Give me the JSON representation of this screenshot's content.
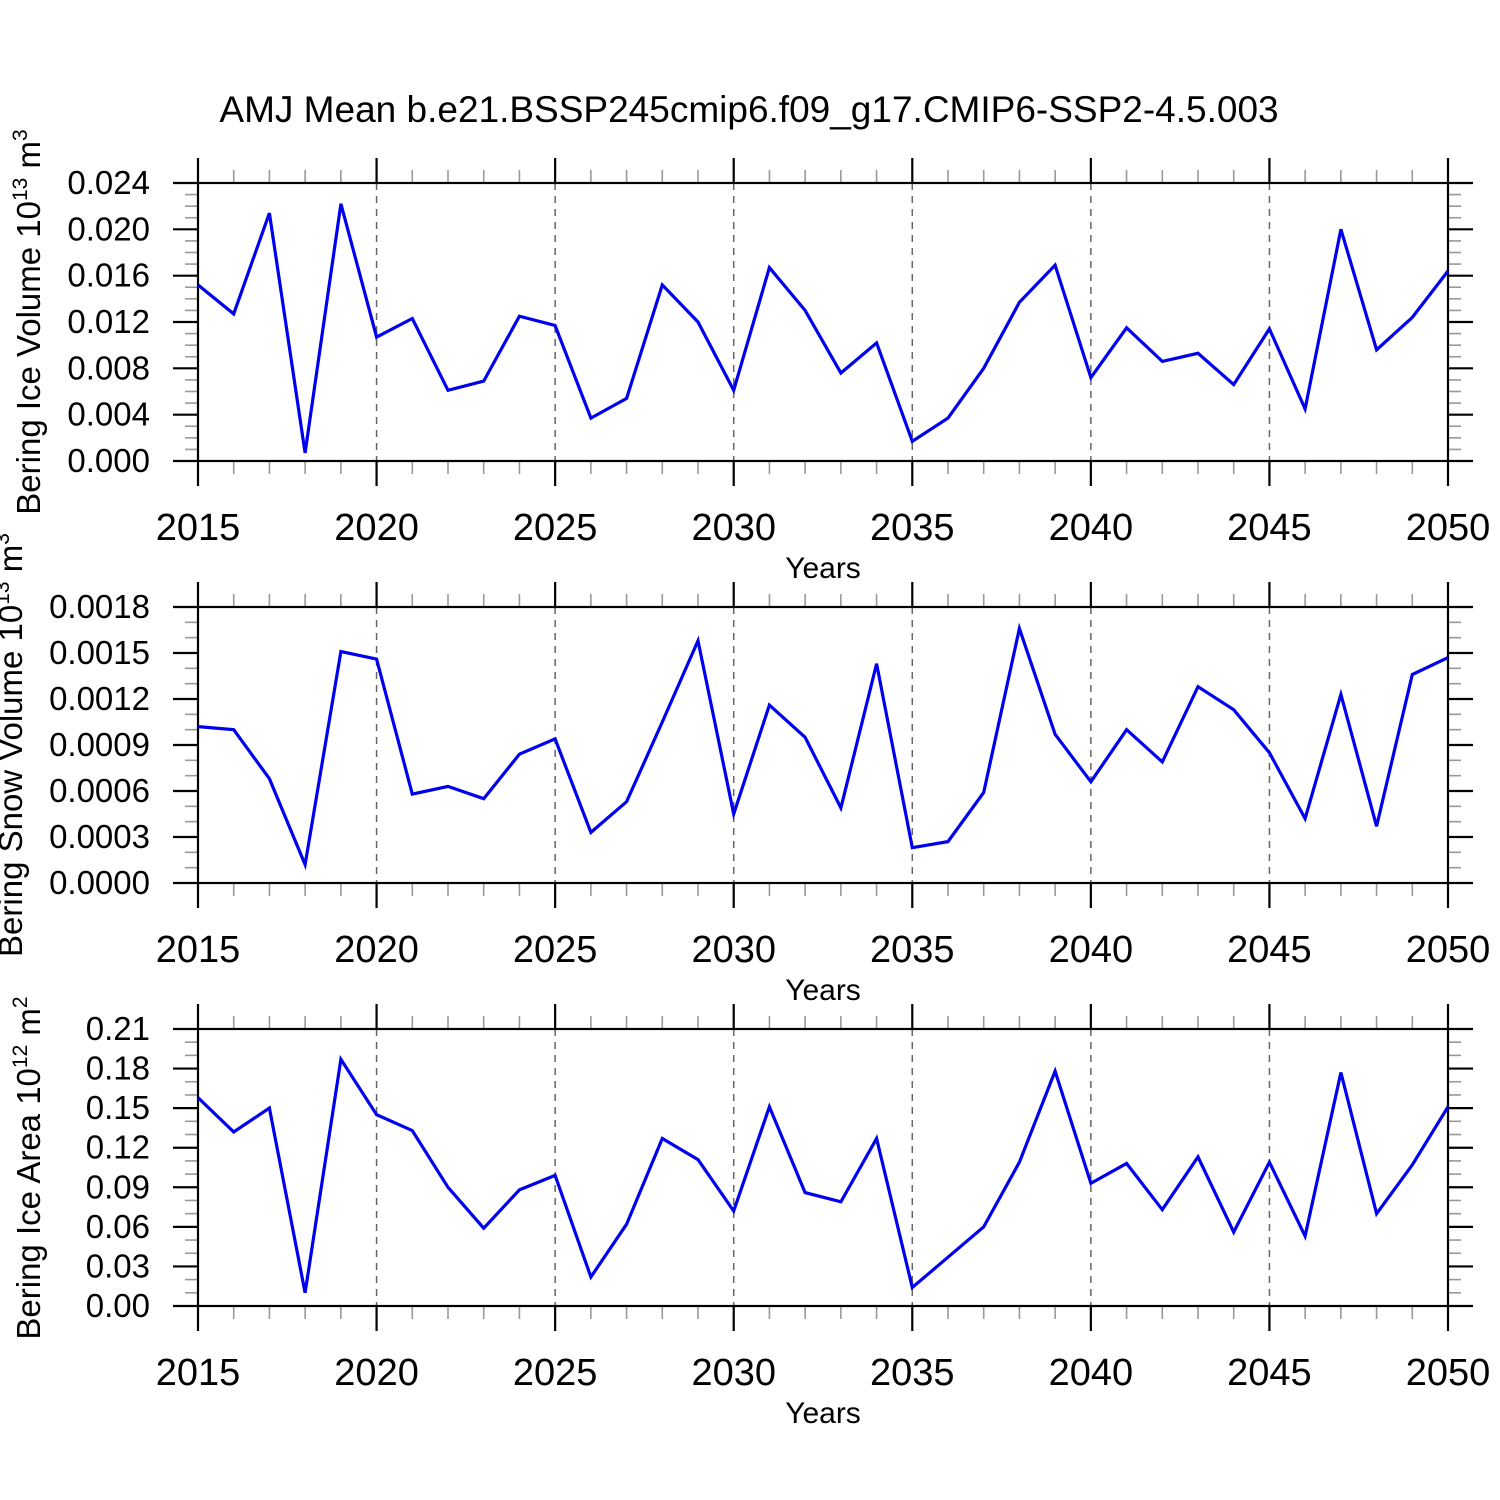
{
  "title": "AMJ Mean b.e21.BSSP245cmip6.f09_g17.CMIP6-SSP2-4.5.003",
  "x_axis": {
    "label": "Years",
    "tick_labels": [
      "2015",
      "2020",
      "2025",
      "2030",
      "2035",
      "2040",
      "2045",
      "2050"
    ],
    "range": [
      2015,
      2050
    ],
    "major_step": 5,
    "minor_step": 1,
    "gridline_years": [
      2020,
      2025,
      2030,
      2035,
      2040,
      2045
    ]
  },
  "years": [
    2015,
    2016,
    2017,
    2018,
    2019,
    2020,
    2021,
    2022,
    2023,
    2024,
    2025,
    2026,
    2027,
    2028,
    2029,
    2030,
    2031,
    2032,
    2033,
    2034,
    2035,
    2036,
    2037,
    2038,
    2039,
    2040,
    2041,
    2042,
    2043,
    2044,
    2045,
    2046,
    2047,
    2048,
    2049,
    2050
  ],
  "chart_data": [
    {
      "type": "line",
      "name": "bering-ice-volume",
      "ylabel_plain": "Bering Ice Volume 10^13 m^3",
      "ylabel_runs": [
        {
          "t": "Bering Ice Volume 10"
        },
        {
          "sup": "13"
        },
        {
          "t": " m"
        },
        {
          "sup": "3"
        }
      ],
      "xlabel": "Years",
      "ylim": [
        0,
        0.024
      ],
      "y_major_step": 0.004,
      "y_minor_step": 0.001,
      "ytick_labels": [
        "0.000",
        "0.004",
        "0.008",
        "0.012",
        "0.016",
        "0.020",
        "0.024"
      ],
      "grid": true,
      "legend": "none",
      "values": [
        0.0152,
        0.0127,
        0.0214,
        0.0007,
        0.0222,
        0.0107,
        0.0123,
        0.0061,
        0.0069,
        0.0125,
        0.0117,
        0.0037,
        0.0054,
        0.0152,
        0.012,
        0.0061,
        0.0167,
        0.013,
        0.0076,
        0.0102,
        0.0017,
        0.0037,
        0.008,
        0.0137,
        0.0169,
        0.0072,
        0.0115,
        0.0086,
        0.0093,
        0.0066,
        0.0114,
        0.0045,
        0.02,
        0.0096,
        0.0124,
        0.0164
      ]
    },
    {
      "type": "line",
      "name": "bering-snow-volume",
      "ylabel_plain": "Bering Snow Volume 10^13 m^3",
      "ylabel_runs": [
        {
          "t": "Bering Snow Volume 10"
        },
        {
          "sup": "13"
        },
        {
          "t": " m"
        },
        {
          "sup": "3"
        }
      ],
      "xlabel": "Years",
      "ylim": [
        0,
        0.0018
      ],
      "y_major_step": 0.0003,
      "y_minor_step": 0.0001,
      "ytick_labels": [
        "0.0000",
        "0.0003",
        "0.0006",
        "0.0009",
        "0.0012",
        "0.0015",
        "0.0018"
      ],
      "grid": true,
      "legend": "none",
      "values": [
        0.00102,
        0.001,
        0.00068,
        0.00012,
        0.00151,
        0.00146,
        0.00058,
        0.00063,
        0.00055,
        0.00084,
        0.00094,
        0.00033,
        0.00053,
        0.00105,
        0.00158,
        0.00045,
        0.00116,
        0.00095,
        0.00049,
        0.00143,
        0.00023,
        0.00027,
        0.00059,
        0.00166,
        0.00097,
        0.00066,
        0.001,
        0.00079,
        0.00128,
        0.00113,
        0.00085,
        0.00042,
        0.00123,
        0.00037,
        0.00136,
        0.00147
      ]
    },
    {
      "type": "line",
      "name": "bering-ice-area",
      "ylabel_plain": "Bering Ice Area 10^12 m^2",
      "ylabel_runs": [
        {
          "t": "Bering Ice Area 10"
        },
        {
          "sup": "12"
        },
        {
          "t": " m"
        },
        {
          "sup": "2"
        }
      ],
      "xlabel": "Years",
      "ylim": [
        0,
        0.21
      ],
      "y_major_step": 0.03,
      "y_minor_step": 0.01,
      "ytick_labels": [
        "0.00",
        "0.03",
        "0.06",
        "0.09",
        "0.12",
        "0.15",
        "0.18",
        "0.21"
      ],
      "grid": true,
      "legend": "none",
      "values": [
        0.158,
        0.132,
        0.15,
        0.01,
        0.187,
        0.145,
        0.133,
        0.09,
        0.059,
        0.088,
        0.099,
        0.022,
        0.062,
        0.127,
        0.111,
        0.072,
        0.151,
        0.086,
        0.079,
        0.127,
        0.014,
        0.037,
        0.06,
        0.109,
        0.178,
        0.093,
        0.108,
        0.073,
        0.113,
        0.056,
        0.109,
        0.053,
        0.177,
        0.07,
        0.107,
        0.151
      ]
    }
  ],
  "style": {
    "line_color": "#0000EE",
    "axis_color": "#000000",
    "minor_tick_color": "#999999",
    "gridline_color": "#666666",
    "background": "#FFFFFF"
  }
}
